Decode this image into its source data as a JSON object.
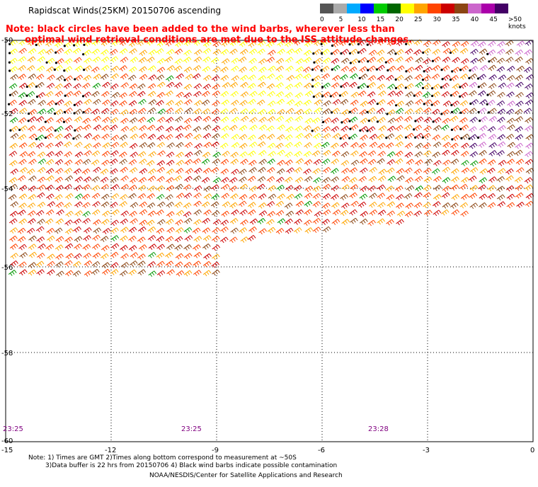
{
  "title": "Rapidscat Winds(25KM) 20150706 ascending",
  "note": "Note: black circles have been added to the wind barbs, wherever less than\n      optimal wind retrieval conditions are met due to the ISS attitude changes.",
  "legend": {
    "colors": [
      "#555555",
      "#aaaaaa",
      "#00aaff",
      "#0000ff",
      "#00cc00",
      "#006600",
      "#ffff00",
      "#ffa500",
      "#ff4400",
      "#cc0000",
      "#8b4513",
      "#cc66cc",
      "#aa00aa",
      "#440066"
    ],
    "ticks": [
      "0",
      "5",
      "10",
      "15",
      "20",
      "25",
      "30",
      "35",
      "40",
      "45",
      ">50 knots"
    ]
  },
  "map": {
    "lat_labels": [
      "-50",
      "-52",
      "-54",
      "-56",
      "-58",
      "-60"
    ],
    "lon_labels": [
      "-15",
      "-12",
      "-9",
      "-6",
      "-3",
      "0"
    ],
    "times": [
      "23:25",
      "23:25",
      "23:28"
    ],
    "lon_range": [
      -15,
      0
    ],
    "lat_range": [
      -60,
      -50
    ]
  },
  "footer": {
    "line1": "Note: 1) Times are GMT 2)Times along bottom correspond to measurement at ~50S",
    "line2": "3)Data buffer is 22 hrs from 20150706 4) Black wind barbs indicate possible contamination",
    "credit": "NOAA/NESDIS/Center for Satellite Applications and Research"
  }
}
